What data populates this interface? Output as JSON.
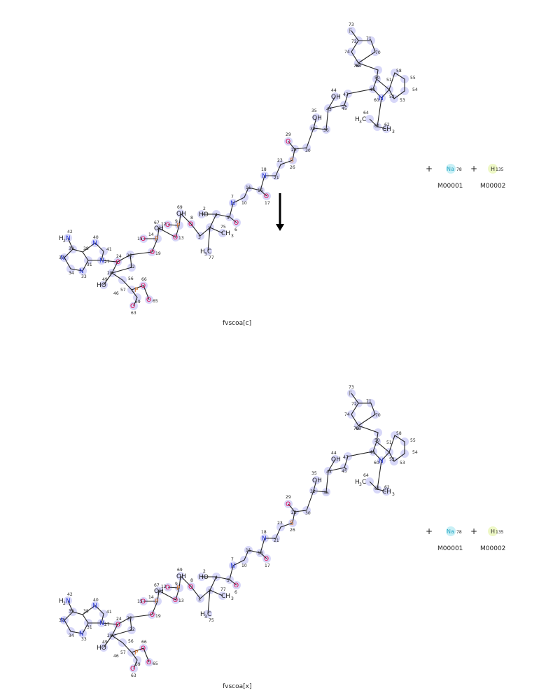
{
  "reaction": {
    "reactant": {
      "caption": "fvscoa[c]",
      "atoms": [
        "H2N",
        "N",
        "N",
        "N",
        "N",
        "O",
        "HO",
        "O",
        "O",
        "P",
        "O",
        "P",
        "OH",
        "O",
        "O",
        "O",
        "OH",
        "HO",
        "O",
        "O",
        "N",
        "O",
        "O-",
        "O",
        "O",
        "S",
        "F",
        "N",
        "OH",
        "OH",
        "H3C",
        "CH3",
        "H3C",
        "CH3",
        "O",
        "P",
        "O",
        "O",
        "O-"
      ],
      "numbers": [
        "1",
        "2",
        "3",
        "4",
        "5",
        "6",
        "7",
        "8",
        "9",
        "10",
        "11",
        "12",
        "13",
        "14",
        "15",
        "16",
        "17",
        "18",
        "19",
        "20",
        "21",
        "22",
        "23",
        "24",
        "25",
        "26",
        "27",
        "28",
        "29",
        "30",
        "31",
        "32",
        "33",
        "34",
        "35",
        "36",
        "37",
        "38",
        "39",
        "40",
        "41",
        "42",
        "43",
        "44",
        "45",
        "46",
        "47",
        "48",
        "49",
        "50",
        "51",
        "52",
        "53",
        "54",
        "55",
        "56",
        "57",
        "58",
        "59",
        "60",
        "61",
        "62",
        "63",
        "64",
        "65",
        "66",
        "67",
        "68",
        "69",
        "70",
        "71",
        "72",
        "73",
        "74",
        "75",
        "76",
        "77"
      ]
    },
    "product": {
      "caption": "fvscoa[x]"
    },
    "cofactors": [
      {
        "symbol": "Na",
        "index": "78",
        "label": "M00001",
        "color": "#6fd3e6"
      },
      {
        "symbol": "H",
        "index": "135",
        "label": "M00002",
        "color": "#d9f27a"
      }
    ],
    "plus": "+",
    "colors": {
      "highlight": "#c9c9f5",
      "oxygen": "#e0004a",
      "nitrogen": "#2a3bd8",
      "phosphorus": "#d4762c",
      "fluorine": "#888888"
    }
  }
}
